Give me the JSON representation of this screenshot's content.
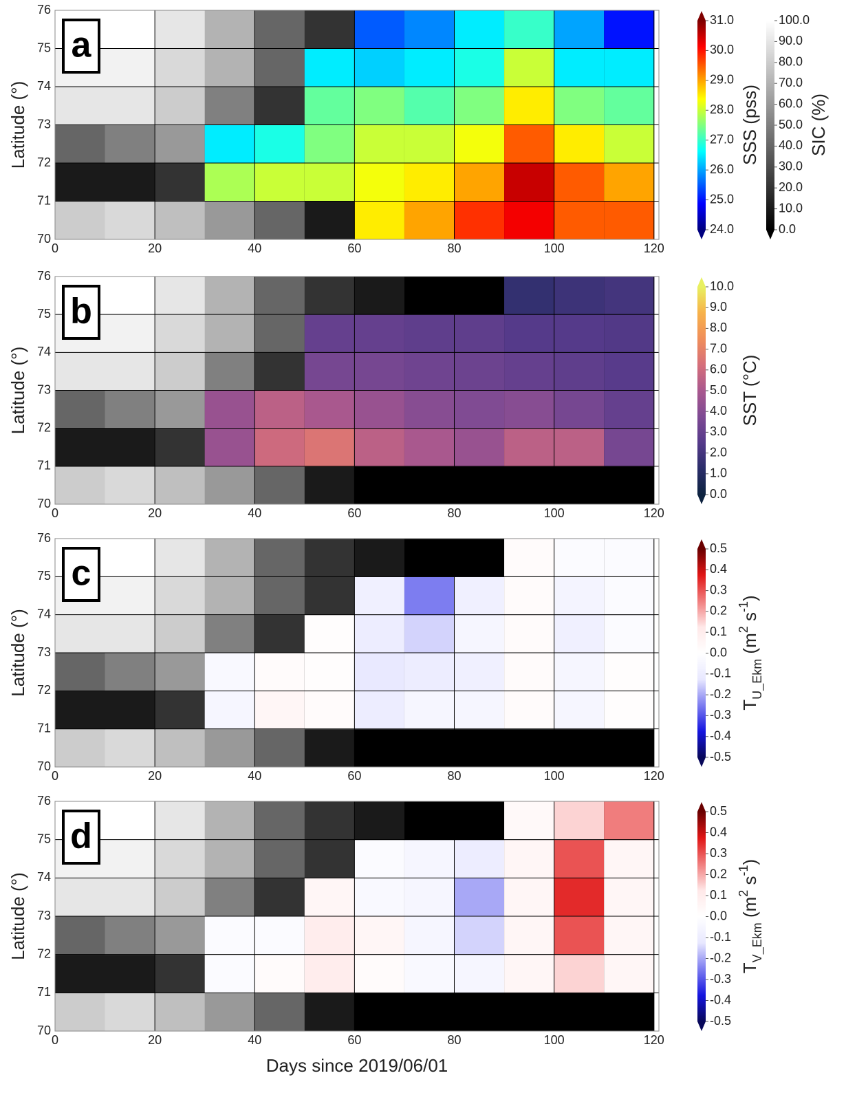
{
  "chart_data": [
    {
      "type": "heatmap",
      "label": "a",
      "ylabel": "Latitude (°)",
      "grid": true,
      "xlim": [
        0,
        121
      ],
      "ylim": [
        70,
        76
      ],
      "xticks": [
        0,
        20,
        40,
        60,
        80,
        100,
        120
      ],
      "yticks": [
        70,
        71,
        72,
        73,
        74,
        75,
        76
      ],
      "x": [
        5,
        15,
        25,
        35,
        45,
        55,
        65,
        75,
        85,
        95,
        105,
        115
      ],
      "y": [
        70.5,
        71.5,
        72.5,
        73.5,
        74.5,
        75.5
      ],
      "sic": [
        [
          80,
          85,
          75,
          60,
          40,
          10,
          0,
          0,
          0,
          0,
          0,
          0
        ],
        [
          10,
          10,
          20,
          15,
          10,
          5,
          0,
          0,
          0,
          0,
          0,
          0
        ],
        [
          40,
          50,
          60,
          30,
          10,
          5,
          0,
          0,
          0,
          0,
          0,
          0
        ],
        [
          90,
          90,
          80,
          50,
          20,
          10,
          0,
          0,
          0,
          0,
          0,
          0
        ],
        [
          95,
          95,
          85,
          70,
          40,
          20,
          10,
          0,
          0,
          0,
          0,
          0
        ],
        [
          100,
          100,
          90,
          70,
          40,
          20,
          10,
          0,
          0,
          0,
          0,
          0
        ]
      ],
      "values": [
        [
          null,
          null,
          null,
          null,
          null,
          null,
          28.5,
          29,
          29.8,
          30.2,
          29.5,
          29.5
        ],
        [
          null,
          null,
          null,
          27.8,
          28,
          28,
          28.3,
          28.5,
          29,
          30.5,
          29.5,
          29
        ],
        [
          null,
          null,
          null,
          26.5,
          26.8,
          27.5,
          28,
          28,
          28.3,
          29.5,
          28.5,
          28
        ],
        [
          null,
          null,
          null,
          null,
          null,
          27.3,
          27.5,
          27.2,
          27.5,
          28.5,
          27.5,
          27.3
        ],
        [
          null,
          null,
          null,
          null,
          null,
          26.5,
          26.3,
          26.5,
          26.8,
          28,
          26.5,
          26.5
        ],
        [
          null,
          null,
          null,
          null,
          null,
          null,
          25.5,
          25.8,
          26.5,
          27,
          26,
          25
        ]
      ],
      "colorbars": [
        {
          "label_parts": [
            {
              "text": "SSS (pss)"
            }
          ],
          "lim": [
            24,
            31
          ],
          "ticks": [
            {
              "value": 31,
              "label": "31.0"
            },
            {
              "value": 30,
              "label": "30.0"
            },
            {
              "value": 29,
              "label": "29.0"
            },
            {
              "value": 28,
              "label": "28.0"
            },
            {
              "value": 27,
              "label": "27.0"
            },
            {
              "value": 26,
              "label": "26.0"
            },
            {
              "value": 25,
              "label": "25.0"
            },
            {
              "value": 24,
              "label": "24.0"
            }
          ],
          "colormap": [
            "#00007f",
            "#0000ff",
            "#0080ff",
            "#00ffff",
            "#80ff80",
            "#ffff00",
            "#ff8000",
            "#ff0000",
            "#7f0000"
          ]
        },
        {
          "label_parts": [
            {
              "text": "SIC (%)"
            }
          ],
          "lim": [
            0,
            100
          ],
          "ticks": [
            {
              "value": 100,
              "label": "100.0"
            },
            {
              "value": 90,
              "label": "90.0"
            },
            {
              "value": 80,
              "label": "80.0"
            },
            {
              "value": 70,
              "label": "70.0"
            },
            {
              "value": 60,
              "label": "60.0"
            },
            {
              "value": 50,
              "label": "50.0"
            },
            {
              "value": 40,
              "label": "40.0"
            },
            {
              "value": 30,
              "label": "30.0"
            },
            {
              "value": 20,
              "label": "20.0"
            },
            {
              "value": 10,
              "label": "10.0"
            },
            {
              "value": 0,
              "label": "0.0"
            }
          ],
          "colormap": [
            "#000000",
            "#ffffff"
          ]
        }
      ]
    },
    {
      "type": "heatmap",
      "label": "b",
      "ylabel": "Latitude (°)",
      "grid": true,
      "xlim": [
        0,
        121
      ],
      "ylim": [
        70,
        76
      ],
      "xticks": [
        0,
        20,
        40,
        60,
        80,
        100,
        120
      ],
      "yticks": [
        70,
        71,
        72,
        73,
        74,
        75,
        76
      ],
      "x": [
        5,
        15,
        25,
        35,
        45,
        55,
        65,
        75,
        85,
        95,
        105,
        115
      ],
      "y": [
        70.5,
        71.5,
        72.5,
        73.5,
        74.5,
        75.5
      ],
      "sic": [
        [
          80,
          85,
          75,
          60,
          40,
          10,
          0,
          0,
          0,
          0,
          0,
          0
        ],
        [
          10,
          10,
          20,
          15,
          10,
          5,
          0,
          0,
          0,
          0,
          0,
          0
        ],
        [
          40,
          50,
          60,
          30,
          10,
          5,
          0,
          0,
          0,
          0,
          0,
          0
        ],
        [
          90,
          90,
          80,
          50,
          20,
          10,
          0,
          0,
          0,
          0,
          0,
          0
        ],
        [
          95,
          95,
          85,
          70,
          40,
          20,
          10,
          0,
          0,
          0,
          0,
          0
        ],
        [
          100,
          100,
          90,
          70,
          40,
          20,
          10,
          0,
          0,
          0,
          0,
          0
        ]
      ],
      "values": [
        [
          null,
          null,
          null,
          null,
          null,
          null,
          null,
          null,
          null,
          null,
          null,
          null
        ],
        [
          null,
          null,
          null,
          4.5,
          6,
          6.5,
          5.5,
          5,
          4.5,
          5.5,
          5.5,
          3.5
        ],
        [
          null,
          null,
          null,
          4.5,
          5.5,
          5,
          4.5,
          4,
          3.8,
          4,
          3.5,
          3
        ],
        [
          null,
          null,
          null,
          null,
          null,
          3.5,
          3.5,
          3.3,
          3.2,
          3,
          2.8,
          2.6
        ],
        [
          null,
          null,
          null,
          null,
          null,
          3,
          3,
          2.8,
          2.8,
          2.5,
          2.5,
          2.4
        ],
        [
          null,
          null,
          null,
          null,
          null,
          null,
          null,
          null,
          null,
          1.5,
          1.8,
          2
        ]
      ],
      "colorbars": [
        {
          "label_parts": [
            {
              "text": "SST (°C)"
            }
          ],
          "lim": [
            0,
            10
          ],
          "ticks": [
            {
              "value": 10,
              "label": "10.0"
            },
            {
              "value": 9,
              "label": "9.0"
            },
            {
              "value": 8,
              "label": "8.0"
            },
            {
              "value": 7,
              "label": "7.0"
            },
            {
              "value": 6,
              "label": "6.0"
            },
            {
              "value": 5,
              "label": "5.0"
            },
            {
              "value": 4,
              "label": "4.0"
            },
            {
              "value": 3,
              "label": "3.0"
            },
            {
              "value": 2,
              "label": "2.0"
            },
            {
              "value": 1,
              "label": "1.0"
            },
            {
              "value": 0,
              "label": "0.0"
            }
          ],
          "colormap": [
            "#0d2340",
            "#2a2d6a",
            "#553a8a",
            "#7e4a93",
            "#a9588e",
            "#d66f7a",
            "#f08e5a",
            "#f7b24a",
            "#e8f060"
          ]
        }
      ]
    },
    {
      "type": "heatmap",
      "label": "c",
      "ylabel": "Latitude (°)",
      "grid": true,
      "xlim": [
        0,
        121
      ],
      "ylim": [
        70,
        76
      ],
      "xticks": [
        0,
        20,
        40,
        60,
        80,
        100,
        120
      ],
      "yticks": [
        70,
        71,
        72,
        73,
        74,
        75,
        76
      ],
      "x": [
        5,
        15,
        25,
        35,
        45,
        55,
        65,
        75,
        85,
        95,
        105,
        115
      ],
      "y": [
        70.5,
        71.5,
        72.5,
        73.5,
        74.5,
        75.5
      ],
      "sic": [
        [
          80,
          85,
          75,
          60,
          40,
          10,
          0,
          0,
          0,
          0,
          0,
          0
        ],
        [
          10,
          10,
          20,
          15,
          10,
          5,
          0,
          0,
          0,
          0,
          0,
          0
        ],
        [
          40,
          50,
          60,
          30,
          10,
          5,
          0,
          0,
          0,
          0,
          0,
          0
        ],
        [
          90,
          90,
          80,
          50,
          20,
          10,
          0,
          0,
          0,
          0,
          0,
          0
        ],
        [
          95,
          95,
          85,
          70,
          40,
          20,
          10,
          0,
          0,
          0,
          0,
          0
        ],
        [
          100,
          100,
          90,
          70,
          40,
          20,
          10,
          0,
          0,
          0,
          0,
          0
        ]
      ],
      "values": [
        [
          null,
          null,
          null,
          null,
          null,
          null,
          null,
          null,
          null,
          null,
          null,
          null
        ],
        [
          null,
          null,
          null,
          -0.05,
          0.05,
          0.02,
          -0.1,
          -0.05,
          -0.05,
          0.02,
          -0.05,
          0.01
        ],
        [
          null,
          null,
          null,
          -0.03,
          0.02,
          0.01,
          -0.12,
          -0.1,
          -0.08,
          0.02,
          -0.05,
          0.01
        ],
        [
          null,
          null,
          null,
          null,
          null,
          0.01,
          -0.1,
          -0.15,
          -0.05,
          0.02,
          -0.08,
          -0.02
        ],
        [
          null,
          null,
          null,
          null,
          null,
          null,
          -0.08,
          -0.25,
          -0.08,
          0.02,
          -0.06,
          -0.02
        ],
        [
          null,
          null,
          null,
          null,
          null,
          null,
          null,
          null,
          null,
          0.02,
          -0.02,
          -0.02
        ]
      ],
      "colorbars": [
        {
          "label_parts": [
            {
              "text": "T"
            },
            {
              "text": "U_Ekm",
              "shift": "sub"
            },
            {
              "text": " (m"
            },
            {
              "text": "2",
              "shift": "super"
            },
            {
              "text": " s"
            },
            {
              "text": "-1",
              "shift": "super"
            },
            {
              "text": ")"
            }
          ],
          "lim": [
            -0.5,
            0.5
          ],
          "ticks": [
            0.5,
            0.4,
            0.3,
            0.2,
            0.1,
            {
              "value": 0,
              "label": "0.0"
            },
            -0.1,
            -0.2,
            -0.3,
            -0.4,
            -0.5
          ],
          "colormap": [
            "#08085a",
            "#1515e0",
            "#7d7df0",
            "#e8e8ff",
            "#ffffff",
            "#ffe8e8",
            "#f07d7d",
            "#e01515",
            "#6a0000"
          ]
        }
      ]
    },
    {
      "type": "heatmap",
      "label": "d",
      "ylabel": "Latitude (°)",
      "xlabel": "Days since 2019/06/01",
      "grid": true,
      "xlim": [
        0,
        121
      ],
      "ylim": [
        70,
        76
      ],
      "xticks": [
        0,
        20,
        40,
        60,
        80,
        100,
        120
      ],
      "yticks": [
        70,
        71,
        72,
        73,
        74,
        75,
        76
      ],
      "x": [
        5,
        15,
        25,
        35,
        45,
        55,
        65,
        75,
        85,
        95,
        105,
        115
      ],
      "y": [
        70.5,
        71.5,
        72.5,
        73.5,
        74.5,
        75.5
      ],
      "sic": [
        [
          80,
          85,
          75,
          60,
          40,
          10,
          0,
          0,
          0,
          0,
          0,
          0
        ],
        [
          10,
          10,
          20,
          15,
          10,
          5,
          0,
          0,
          0,
          0,
          0,
          0
        ],
        [
          40,
          50,
          60,
          30,
          10,
          5,
          0,
          0,
          0,
          0,
          0,
          0
        ],
        [
          90,
          90,
          80,
          50,
          20,
          10,
          0,
          0,
          0,
          0,
          0,
          0
        ],
        [
          95,
          95,
          85,
          70,
          40,
          20,
          10,
          0,
          0,
          0,
          0,
          0
        ],
        [
          100,
          100,
          90,
          70,
          40,
          20,
          10,
          0,
          0,
          0,
          0,
          0
        ]
      ],
      "values": [
        [
          null,
          null,
          null,
          null,
          null,
          null,
          null,
          null,
          null,
          null,
          null,
          null
        ],
        [
          null,
          null,
          null,
          -0.02,
          0.02,
          0.1,
          0.02,
          -0.03,
          -0.05,
          0.05,
          0.15,
          0.05
        ],
        [
          null,
          null,
          null,
          -0.02,
          -0.02,
          0.1,
          0.05,
          -0.05,
          -0.15,
          0.05,
          0.3,
          0.05
        ],
        [
          null,
          null,
          null,
          null,
          null,
          0.05,
          -0.03,
          -0.05,
          -0.2,
          0.05,
          0.35,
          0.05
        ],
        [
          null,
          null,
          null,
          null,
          null,
          null,
          -0.02,
          -0.05,
          -0.1,
          0.05,
          0.3,
          0.05
        ],
        [
          null,
          null,
          null,
          null,
          null,
          null,
          null,
          null,
          null,
          0.03,
          0.15,
          0.25
        ]
      ],
      "colorbars": [
        {
          "label_parts": [
            {
              "text": "T"
            },
            {
              "text": "V_Ekm",
              "shift": "sub"
            },
            {
              "text": " (m"
            },
            {
              "text": "2",
              "shift": "super"
            },
            {
              "text": " s"
            },
            {
              "text": "-1",
              "shift": "super"
            },
            {
              "text": ")"
            }
          ],
          "lim": [
            -0.5,
            0.5
          ],
          "ticks": [
            0.5,
            0.4,
            0.3,
            0.2,
            0.1,
            {
              "value": 0,
              "label": "0.0"
            },
            -0.1,
            -0.2,
            -0.3,
            -0.4,
            -0.5
          ],
          "colormap": [
            "#08085a",
            "#1515e0",
            "#7d7df0",
            "#e8e8ff",
            "#ffffff",
            "#ffe8e8",
            "#f07d7d",
            "#e01515",
            "#6a0000"
          ]
        }
      ]
    }
  ]
}
